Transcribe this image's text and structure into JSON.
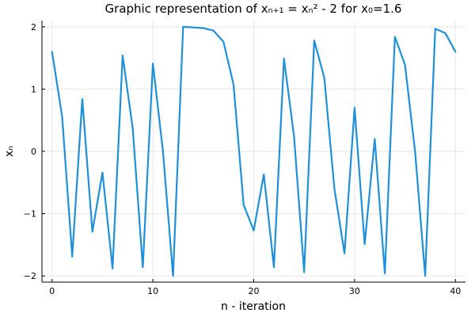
{
  "chart_data": {
    "type": "line",
    "title": "Graphic representation of xₙ₊₁ = xₙ² - 2 for x₀=1.6",
    "xlabel": "n - iteration",
    "ylabel": "xₙ",
    "xlim": [
      -1,
      41
    ],
    "ylim": [
      -2.1,
      2.1
    ],
    "grid": true,
    "legend": "none",
    "x_ticks": [
      0,
      10,
      20,
      30,
      40
    ],
    "y_ticks": [
      -2,
      -1,
      0,
      1,
      2
    ],
    "x_tick_labels": [
      "0",
      "10",
      "20",
      "30",
      "40"
    ],
    "y_tick_labels": [
      "−2",
      "−1",
      "0",
      "1",
      "2"
    ],
    "series": [
      {
        "color": "#1f8fd8",
        "x": [
          0,
          1,
          2,
          3,
          4,
          5,
          6,
          7,
          8,
          9,
          10,
          11,
          12,
          13,
          14,
          15,
          16,
          17,
          18,
          19,
          20,
          21,
          22,
          23,
          24,
          25,
          26,
          27,
          28,
          29,
          30,
          31,
          32,
          33,
          34,
          35,
          36,
          37,
          38,
          39,
          40
        ],
        "values": [
          1.6,
          0.56,
          -1.69,
          0.84,
          -1.29,
          -0.34,
          -1.88,
          1.54,
          0.37,
          -1.86,
          1.41,
          0.0,
          -2.0,
          2.0,
          1.99,
          1.98,
          1.94,
          1.76,
          1.07,
          -0.86,
          -1.27,
          -0.37,
          -1.86,
          1.49,
          0.24,
          -1.94,
          1.78,
          1.18,
          -0.6,
          -1.64,
          0.7,
          -1.49,
          0.2,
          -1.96,
          1.84,
          1.39,
          0.0,
          -2.0,
          1.97,
          1.9,
          1.6
        ]
      }
    ]
  }
}
